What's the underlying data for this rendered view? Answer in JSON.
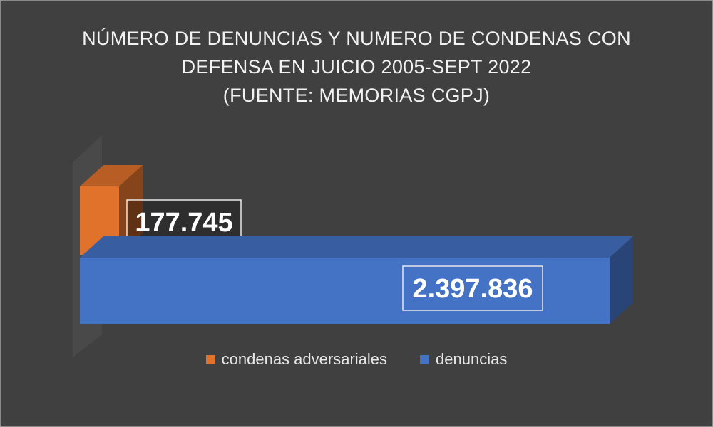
{
  "title_lines": [
    "NÚMERO DE DENUNCIAS Y NUMERO DE CONDENAS CON",
    "DEFENSA  EN JUICIO 2005-SEPT 2022",
    "(FUENTE: MEMORIAS CGPJ)"
  ],
  "chart_data": {
    "type": "bar",
    "orientation": "horizontal",
    "style": "3d",
    "categories": [
      ""
    ],
    "series": [
      {
        "name": "condenas adversariales",
        "values": [
          177745
        ],
        "label": "177.745",
        "color": "#e0722b"
      },
      {
        "name": "denuncias",
        "values": [
          2397836
        ],
        "label": "2.397.836",
        "color": "#4472c4"
      }
    ],
    "xlim": [
      0,
      2397836
    ],
    "grid": false,
    "legend_position": "bottom"
  },
  "colors": {
    "background": "#404040",
    "orange": "#e0722b",
    "blue": "#4472c4"
  }
}
